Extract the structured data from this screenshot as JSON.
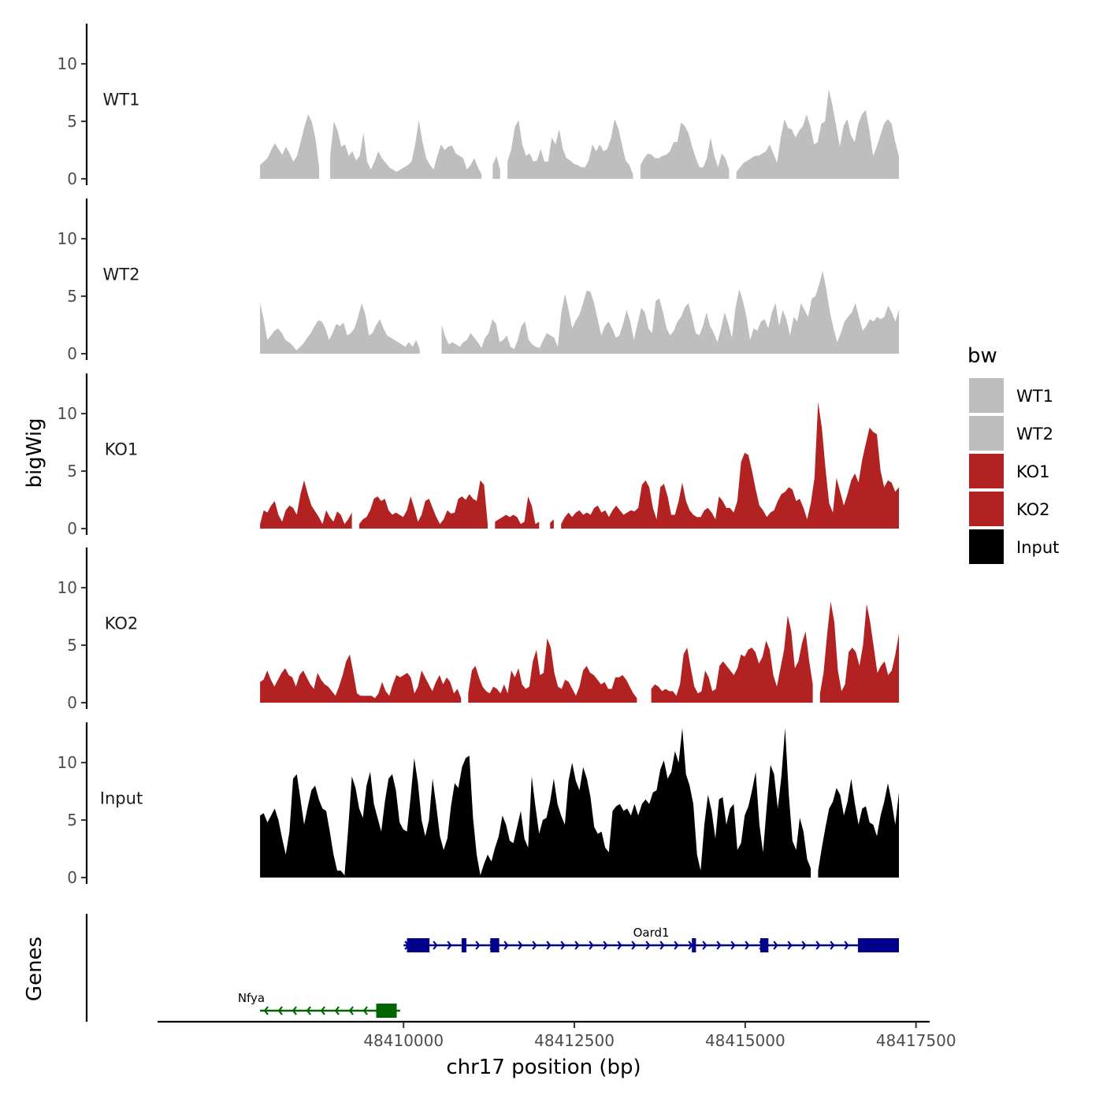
{
  "chart_data": {
    "type": "area",
    "chromosome": "chr17",
    "xlabel": "chr17 position (bp)",
    "ylabel_tracks": "bigWig",
    "ylabel_genes": "Genes",
    "xlim": [
      48406400,
      48417700
    ],
    "region_start": 48407900,
    "region_end": 48417250,
    "ylim": [
      0,
      13.5
    ],
    "x_ticks": [
      48410000,
      48412500,
      48415000,
      48417500
    ],
    "x_tick_labels": [
      "48410000",
      "48412500",
      "48415000",
      "48417500"
    ],
    "y_ticks": [
      0,
      5,
      10
    ],
    "y_tick_labels": [
      "0",
      "5",
      "10"
    ],
    "legend": {
      "title": "bw",
      "position": "right",
      "entries": [
        {
          "label": "WT1",
          "color": "#bebebe"
        },
        {
          "label": "WT2",
          "color": "#bebebe"
        },
        {
          "label": "KO1",
          "color": "#b22222"
        },
        {
          "label": "KO2",
          "color": "#b22222"
        },
        {
          "label": "Input",
          "color": "#000000"
        }
      ]
    },
    "tracks": [
      {
        "name": "WT1",
        "color": "#bebebe",
        "values": [
          1.2,
          1.5,
          1.8,
          2.5,
          3.1,
          2.6,
          2.1,
          2.8,
          2.2,
          1.5,
          2.0,
          3.2,
          4.5,
          5.6,
          5.0,
          3.5,
          1.0,
          null,
          null,
          2.0,
          5.0,
          4.2,
          2.8,
          3.0,
          2.0,
          2.4,
          1.6,
          2.0,
          4.0,
          1.5,
          0.8,
          1.5,
          2.4,
          1.8,
          1.4,
          1.0,
          0.8,
          0.6,
          0.8,
          1.0,
          1.2,
          1.5,
          3.0,
          5.1,
          3.2,
          1.8,
          1.2,
          0.8,
          2.0,
          3.0,
          2.5,
          2.8,
          2.9,
          2.2,
          2.0,
          1.8,
          0.8,
          1.2,
          1.8,
          1.0,
          0.4,
          null,
          null,
          1.2,
          2.0,
          0.8,
          null,
          1.5,
          2.5,
          4.5,
          5.1,
          3.0,
          2.0,
          2.2,
          1.5,
          1.6,
          2.6,
          1.5,
          1.5,
          3.6,
          3.0,
          4.3,
          2.6,
          1.8,
          1.6,
          1.3,
          1.2,
          1.0,
          1.0,
          1.6,
          3.0,
          2.4,
          3.0,
          2.4,
          2.6,
          3.5,
          5.2,
          4.4,
          3.0,
          1.6,
          1.2,
          0.4,
          null,
          1.2,
          1.8,
          2.2,
          2.1,
          1.8,
          1.8,
          2.0,
          2.1,
          2.4,
          3.2,
          3.2,
          4.9,
          4.6,
          4.0,
          2.8,
          1.8,
          1.0,
          1.0,
          1.8,
          3.6,
          2.0,
          1.0,
          2.2,
          1.8,
          0.8,
          null,
          0.6,
          1.0,
          1.4,
          1.6,
          1.8,
          2.0,
          2.0,
          2.2,
          2.4,
          3.0,
          2.2,
          1.4,
          3.6,
          5.2,
          4.4,
          4.3,
          3.6,
          4.2,
          4.6,
          5.6,
          4.6,
          3.0,
          3.2,
          4.8,
          5.0,
          7.8,
          6.4,
          4.6,
          2.8,
          4.6,
          5.2,
          3.8,
          3.2,
          4.8,
          5.6,
          6.0,
          4.2,
          2.0,
          2.8,
          3.8,
          4.8,
          5.2,
          4.8,
          3.2,
          2.0
        ]
      },
      {
        "name": "WT2",
        "color": "#bebebe",
        "values": [
          4.4,
          3.0,
          1.2,
          1.6,
          2.0,
          2.2,
          1.8,
          1.2,
          1.0,
          0.7,
          0.3,
          0.6,
          0.9,
          1.4,
          1.8,
          2.4,
          2.9,
          2.8,
          2.2,
          1.2,
          1.8,
          2.6,
          2.4,
          2.7,
          1.6,
          1.8,
          2.2,
          3.2,
          4.4,
          3.4,
          1.6,
          1.8,
          2.5,
          3.0,
          2.2,
          1.6,
          1.4,
          1.2,
          1.0,
          0.8,
          0.6,
          1.0,
          0.6,
          1.2,
          0.4,
          null,
          null,
          null,
          null,
          null,
          2.5,
          1.5,
          0.8,
          1.0,
          0.8,
          0.6,
          1.0,
          1.2,
          1.8,
          1.4,
          1.0,
          0.5,
          1.4,
          1.8,
          3.0,
          2.6,
          1.0,
          1.2,
          1.6,
          0.6,
          0.4,
          1.2,
          2.4,
          2.8,
          1.2,
          0.8,
          0.6,
          0.5,
          1.2,
          1.8,
          1.6,
          1.4,
          0.6,
          3.6,
          5.2,
          3.8,
          2.2,
          2.9,
          3.4,
          4.4,
          5.5,
          5.4,
          4.4,
          3.0,
          1.6,
          2.4,
          2.8,
          2.2,
          1.4,
          1.6,
          2.6,
          3.8,
          2.8,
          1.2,
          2.6,
          4.0,
          3.6,
          2.2,
          1.8,
          4.6,
          4.8,
          3.6,
          2.2,
          1.6,
          2.0,
          2.8,
          3.2,
          4.0,
          4.4,
          3.2,
          1.8,
          1.6,
          2.4,
          3.6,
          2.4,
          1.8,
          1.0,
          2.2,
          3.6,
          2.6,
          1.4,
          4.0,
          5.6,
          4.6,
          3.2,
          1.2,
          2.2,
          2.0,
          2.8,
          3.0,
          2.2,
          3.6,
          4.4,
          2.4,
          3.8,
          3.0,
          1.6,
          3.2,
          2.8,
          4.4,
          3.8,
          3.2,
          4.8,
          5.0,
          6.0,
          7.2,
          5.6,
          3.6,
          2.2,
          1.0,
          1.8,
          2.8,
          3.2,
          3.6,
          4.4,
          3.2,
          2.0,
          2.4,
          3.0,
          2.8,
          3.2,
          3.0,
          3.2,
          4.2,
          3.6,
          2.8,
          3.8
        ]
      },
      {
        "name": "KO1",
        "color": "#b22222",
        "values": [
          0.4,
          1.6,
          1.4,
          2.0,
          2.4,
          1.2,
          0.6,
          1.6,
          2.0,
          1.8,
          1.2,
          3.0,
          4.2,
          3.0,
          2.0,
          1.5,
          1.0,
          0.4,
          1.6,
          1.0,
          0.6,
          1.5,
          1.2,
          0.4,
          0.8,
          1.4,
          null,
          0.4,
          0.8,
          1.0,
          1.6,
          2.6,
          2.8,
          2.4,
          2.6,
          1.6,
          1.2,
          1.4,
          1.2,
          1.0,
          1.6,
          2.8,
          1.8,
          0.6,
          1.2,
          2.4,
          2.6,
          1.8,
          1.0,
          0.4,
          0.8,
          1.6,
          1.3,
          1.4,
          2.6,
          2.8,
          2.5,
          3.0,
          2.6,
          2.4,
          4.2,
          3.8,
          0.4,
          null,
          0.6,
          0.8,
          1.0,
          1.2,
          1.0,
          1.2,
          1.0,
          0.4,
          0.6,
          2.8,
          2.0,
          0.4,
          0.6,
          null,
          null,
          0.5,
          0.8,
          null,
          0.4,
          1.0,
          1.4,
          1.0,
          1.4,
          1.6,
          1.2,
          1.4,
          1.2,
          1.8,
          2.0,
          1.4,
          1.6,
          1.0,
          1.6,
          2.0,
          1.6,
          1.2,
          1.4,
          1.6,
          1.5,
          1.8,
          3.8,
          4.2,
          3.6,
          1.8,
          0.8,
          3.6,
          3.9,
          2.8,
          1.2,
          1.2,
          2.4,
          4.0,
          2.4,
          1.6,
          1.2,
          1.0,
          1.0,
          1.6,
          1.8,
          1.4,
          0.8,
          2.8,
          2.4,
          1.8,
          1.8,
          1.4,
          2.4,
          5.8,
          6.6,
          6.4,
          5.0,
          3.4,
          2.0,
          1.6,
          1.0,
          1.4,
          1.6,
          2.4,
          3.0,
          3.2,
          3.6,
          3.4,
          2.4,
          2.6,
          1.8,
          0.8,
          2.2,
          4.4,
          11.0,
          8.8,
          5.2,
          2.2,
          1.4,
          4.4,
          3.2,
          2.0,
          3.0,
          4.2,
          4.8,
          4.0,
          6.0,
          7.4,
          8.8,
          8.4,
          8.2,
          5.0,
          3.6,
          4.2,
          4.0,
          3.2,
          3.6
        ]
      },
      {
        "name": "KO2",
        "color": "#b22222",
        "values": [
          1.8,
          2.0,
          2.8,
          2.0,
          1.4,
          2.0,
          2.6,
          3.0,
          2.4,
          2.2,
          1.4,
          2.4,
          2.8,
          2.2,
          1.6,
          1.2,
          2.6,
          2.0,
          1.6,
          1.4,
          1.0,
          0.6,
          1.4,
          2.4,
          3.6,
          4.2,
          2.6,
          0.8,
          0.6,
          0.6,
          0.6,
          0.6,
          0.4,
          0.8,
          1.8,
          1.0,
          0.6,
          1.6,
          2.4,
          2.2,
          2.4,
          2.6,
          2.2,
          0.8,
          1.4,
          2.8,
          2.2,
          1.6,
          1.0,
          1.8,
          2.4,
          1.6,
          2.2,
          1.8,
          0.8,
          1.2,
          0.4,
          null,
          0.8,
          2.8,
          3.2,
          2.2,
          1.4,
          1.0,
          0.8,
          1.4,
          1.2,
          0.8,
          1.6,
          0.8,
          2.8,
          2.2,
          3.0,
          1.6,
          1.2,
          1.4,
          3.6,
          4.6,
          2.4,
          2.6,
          5.6,
          4.8,
          2.6,
          1.4,
          1.2,
          2.0,
          1.8,
          1.2,
          0.6,
          1.4,
          2.8,
          3.2,
          2.6,
          2.4,
          2.0,
          1.6,
          1.8,
          1.2,
          1.2,
          2.2,
          2.2,
          2.4,
          2.0,
          1.4,
          0.8,
          0.4,
          null,
          0.6,
          null,
          1.2,
          1.6,
          1.4,
          1.0,
          1.2,
          1.0,
          1.0,
          0.6,
          1.6,
          4.2,
          4.8,
          3.0,
          1.4,
          0.8,
          1.0,
          2.8,
          2.2,
          1.0,
          1.2,
          3.2,
          3.6,
          3.2,
          2.8,
          2.4,
          3.0,
          4.2,
          4.0,
          4.6,
          4.8,
          4.4,
          3.4,
          4.0,
          5.4,
          4.6,
          2.4,
          1.4,
          3.0,
          4.6,
          7.6,
          6.2,
          3.0,
          3.6,
          5.2,
          6.2,
          3.6,
          1.6,
          null,
          0.8,
          2.6,
          6.0,
          8.8,
          7.0,
          2.8,
          1.0,
          1.6,
          4.4,
          4.8,
          4.4,
          3.2,
          5.0,
          8.6,
          7.0,
          4.8,
          2.6,
          3.2,
          3.6,
          2.4,
          2.8,
          4.2,
          6.0
        ]
      },
      {
        "name": "Input",
        "color": "#000000",
        "values": [
          5.4,
          5.6,
          4.8,
          5.4,
          6.0,
          5.0,
          3.4,
          2.0,
          4.0,
          8.6,
          9.0,
          6.8,
          4.6,
          6.2,
          7.6,
          8.0,
          6.8,
          6.0,
          5.8,
          4.0,
          2.0,
          0.6,
          0.6,
          0.2,
          4.2,
          8.8,
          7.8,
          6.0,
          5.2,
          8.0,
          9.2,
          6.4,
          5.2,
          4.0,
          6.6,
          8.6,
          9.0,
          7.6,
          4.8,
          4.2,
          4.0,
          7.0,
          10.4,
          8.2,
          5.0,
          3.6,
          5.0,
          8.6,
          6.2,
          3.6,
          2.4,
          3.4,
          6.2,
          8.2,
          7.8,
          9.6,
          10.4,
          10.6,
          5.2,
          2.0,
          0.2,
          1.2,
          2.0,
          1.4,
          2.6,
          3.6,
          5.4,
          4.6,
          3.2,
          3.0,
          4.4,
          5.8,
          3.4,
          2.6,
          8.8,
          6.2,
          3.8,
          5.0,
          5.2,
          6.6,
          8.6,
          6.4,
          5.4,
          4.6,
          8.4,
          10.0,
          8.4,
          7.6,
          9.6,
          8.6,
          7.0,
          4.4,
          3.8,
          4.0,
          2.6,
          2.2,
          5.8,
          6.2,
          6.4,
          5.8,
          6.0,
          5.4,
          6.4,
          5.4,
          6.4,
          6.8,
          6.4,
          7.4,
          7.6,
          9.4,
          10.2,
          8.6,
          9.2,
          11.0,
          10.0,
          13.0,
          9.0,
          8.0,
          6.4,
          2.0,
          0.6,
          4.6,
          7.2,
          5.8,
          3.4,
          6.8,
          7.0,
          4.6,
          6.0,
          6.4,
          2.4,
          3.0,
          5.4,
          6.2,
          7.6,
          9.2,
          4.6,
          2.2,
          6.2,
          9.8,
          9.0,
          6.0,
          8.8,
          13.0,
          7.2,
          3.2,
          2.4,
          5.2,
          4.0,
          1.6,
          0.8,
          null,
          0.6,
          2.6,
          4.4,
          6.0,
          6.6,
          7.8,
          7.2,
          5.4,
          6.6,
          8.6,
          6.4,
          4.6,
          6.0,
          6.2,
          4.8,
          4.6,
          3.6,
          5.4,
          6.6,
          8.2,
          6.6,
          4.6,
          7.4
        ]
      }
    ],
    "genes": [
      {
        "name": "Oard1",
        "strand": "+",
        "start": 48410000,
        "end": 48417250,
        "color": "#00008b",
        "exons": [
          [
            48410050,
            48410380
          ],
          [
            48410850,
            48410920
          ],
          [
            48411270,
            48411400
          ],
          [
            48414220,
            48414280
          ],
          [
            48415220,
            48415340
          ],
          [
            48416650,
            48417250
          ]
        ]
      },
      {
        "name": "Nfya",
        "strand": "-",
        "start": 48407900,
        "end": 48409950,
        "color": "#006400",
        "exons": [
          [
            48409600,
            48409900
          ]
        ]
      }
    ]
  }
}
